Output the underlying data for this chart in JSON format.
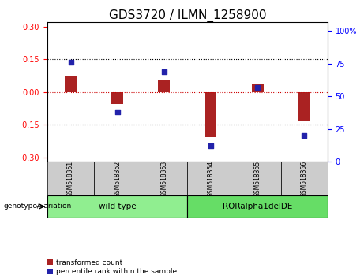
{
  "title": "GDS3720 / ILMN_1258900",
  "samples": [
    "GSM518351",
    "GSM518352",
    "GSM518353",
    "GSM518354",
    "GSM518355",
    "GSM518356"
  ],
  "transformed_count": [
    0.075,
    -0.055,
    0.055,
    -0.205,
    0.04,
    -0.13
  ],
  "percentile_rank": [
    76,
    38,
    69,
    12,
    57,
    20
  ],
  "ylim_left": [
    -0.32,
    0.32
  ],
  "ylim_right": [
    0,
    106.67
  ],
  "yticks_left": [
    -0.3,
    -0.15,
    0.0,
    0.15,
    0.3
  ],
  "yticks_right": [
    0,
    25,
    50,
    75,
    100
  ],
  "bar_color": "#AA2222",
  "scatter_color": "#2222AA",
  "zero_line_color": "#CC0000",
  "hline_color": "#000000",
  "hlines": [
    -0.15,
    0.15
  ],
  "group_labels": [
    "wild type",
    "RORalpha1delDE"
  ],
  "group_colors": [
    "#90EE90",
    "#66DD66"
  ],
  "genotype_label": "genotype/variation",
  "legend_labels": [
    "transformed count",
    "percentile rank within the sample"
  ],
  "bar_width": 0.25,
  "tick_label_size": 7,
  "title_fontsize": 11,
  "label_box_color": "#CCCCCC",
  "right_tick_label": "100%"
}
